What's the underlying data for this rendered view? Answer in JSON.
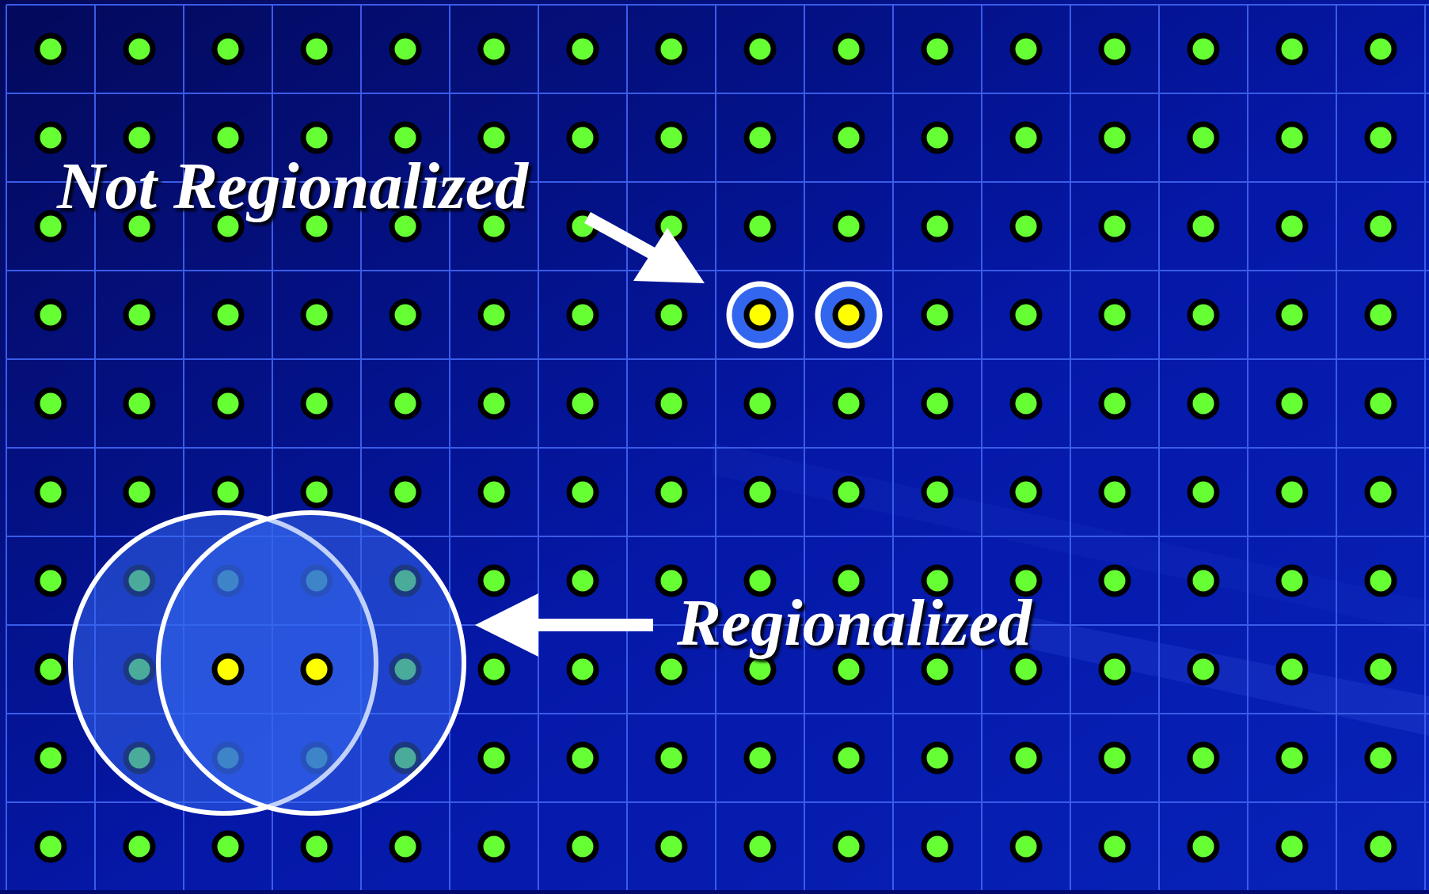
{
  "labels": {
    "not_regionalized": "Not Regionalized",
    "regionalized": "Regionalized"
  },
  "grid": {
    "columns": 16,
    "rows": 10
  },
  "colors": {
    "background": "#020a6e",
    "grid_line": "#3a5ce8",
    "station_dot": "#66ff33",
    "highlight_dot": "#ffff00",
    "ring_fill": "#3366ee",
    "label_text": "#ffffff"
  },
  "highlights": {
    "not_regionalized": [
      {
        "col": 9,
        "row": 4
      },
      {
        "col": 10,
        "row": 4
      }
    ],
    "regionalized": [
      {
        "col": 3,
        "row": 8
      },
      {
        "col": 4,
        "row": 8
      }
    ]
  }
}
